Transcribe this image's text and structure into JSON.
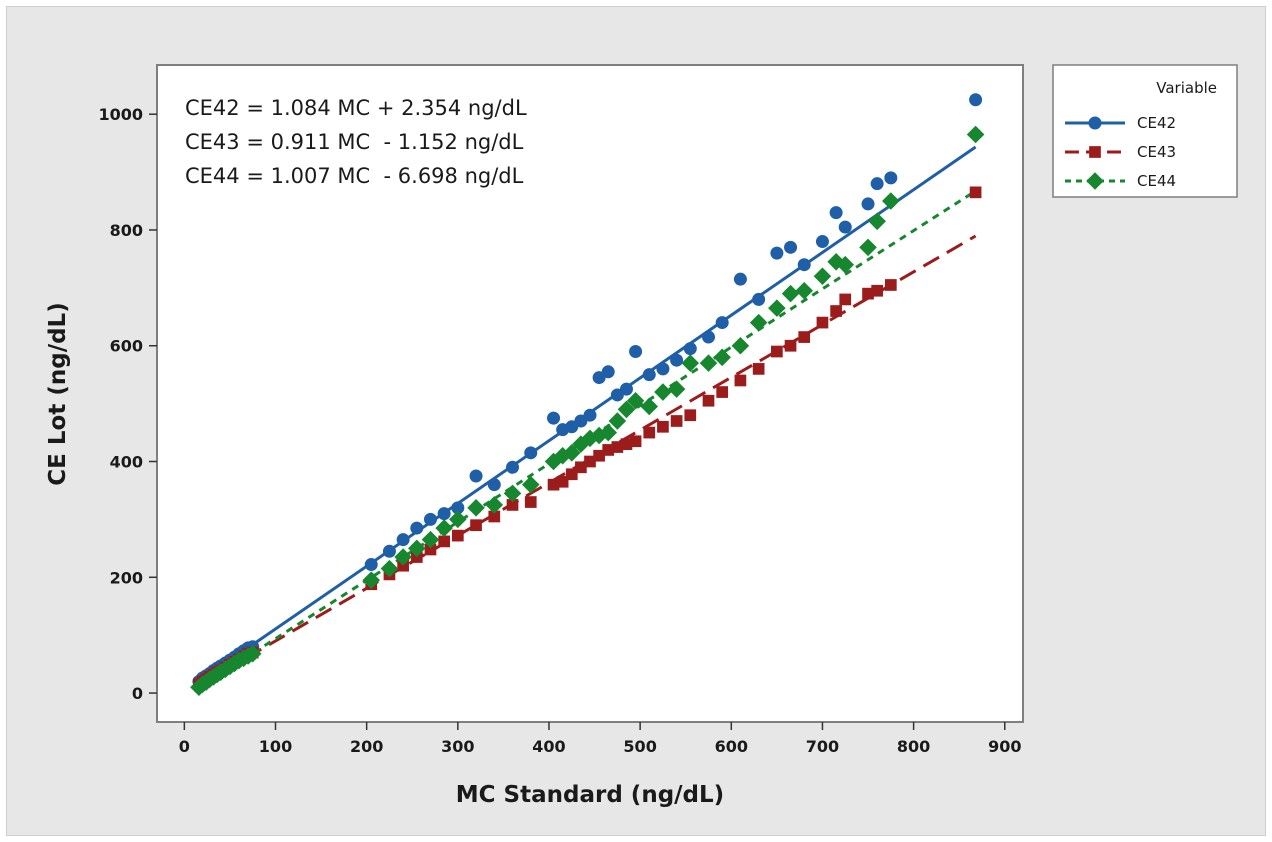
{
  "chart_data": {
    "type": "scatter",
    "xlabel": "MC Standard (ng/dL)",
    "ylabel": "CE Lot (ng/dL)",
    "xlim": [
      -30,
      920
    ],
    "ylim": [
      -50,
      1085
    ],
    "xticks": [
      0,
      100,
      200,
      300,
      400,
      500,
      600,
      700,
      800,
      900
    ],
    "yticks": [
      0,
      200,
      400,
      600,
      800,
      1000
    ],
    "grid": false,
    "legend": {
      "title": "Variable",
      "placement": "right"
    },
    "annotations": [
      "CE42 = 1.084 MC + 2.354 ng/dL",
      "CE43 = 0.911 MC  - 1.152 ng/dL",
      "CE44 = 1.007 MC  - 6.698 ng/dL"
    ],
    "x": [
      16,
      20,
      24,
      28,
      32,
      36,
      40,
      45,
      50,
      55,
      60,
      65,
      70,
      75,
      205,
      225,
      240,
      255,
      270,
      285,
      300,
      320,
      340,
      360,
      380,
      405,
      415,
      425,
      435,
      445,
      455,
      465,
      475,
      485,
      495,
      510,
      525,
      540,
      555,
      575,
      590,
      610,
      630,
      650,
      665,
      680,
      700,
      715,
      725,
      750,
      760,
      775,
      868
    ],
    "series": [
      {
        "name": "CE42",
        "color": "#1f5fa8",
        "marker": "circle",
        "line_style": "solid",
        "fit": {
          "slope": 1.084,
          "intercept": 2.354
        },
        "values": [
          20,
          26,
          30,
          34,
          39,
          43,
          47,
          52,
          57,
          62,
          68,
          73,
          78,
          80,
          222,
          245,
          265,
          285,
          300,
          310,
          320,
          375,
          360,
          390,
          415,
          475,
          455,
          460,
          470,
          480,
          545,
          555,
          515,
          525,
          590,
          550,
          560,
          575,
          595,
          615,
          640,
          715,
          680,
          760,
          770,
          740,
          780,
          830,
          805,
          845,
          880,
          890,
          1025
        ]
      },
      {
        "name": "CE43",
        "color": "#9c1c1c",
        "marker": "square",
        "line_style": "dashed",
        "fit": {
          "slope": 0.911,
          "intercept": -1.152
        },
        "values": [
          15,
          20,
          24,
          28,
          32,
          36,
          39,
          44,
          49,
          54,
          58,
          63,
          68,
          70,
          188,
          205,
          220,
          235,
          248,
          262,
          272,
          290,
          305,
          325,
          330,
          360,
          365,
          378,
          390,
          400,
          410,
          420,
          425,
          430,
          435,
          450,
          460,
          470,
          480,
          505,
          520,
          540,
          560,
          590,
          600,
          615,
          640,
          660,
          680,
          690,
          695,
          705,
          865
        ]
      },
      {
        "name": "CE44",
        "color": "#17872f",
        "marker": "diamond",
        "line_style": "dotted",
        "fit": {
          "slope": 1.007,
          "intercept": -6.698
        },
        "values": [
          10,
          15,
          19,
          24,
          28,
          32,
          36,
          41,
          46,
          51,
          56,
          60,
          64,
          68,
          195,
          215,
          235,
          250,
          265,
          285,
          300,
          320,
          325,
          345,
          360,
          400,
          410,
          415,
          430,
          440,
          445,
          450,
          470,
          490,
          505,
          495,
          520,
          525,
          570,
          570,
          580,
          600,
          640,
          665,
          690,
          695,
          720,
          745,
          740,
          770,
          815,
          850,
          965
        ]
      }
    ]
  }
}
